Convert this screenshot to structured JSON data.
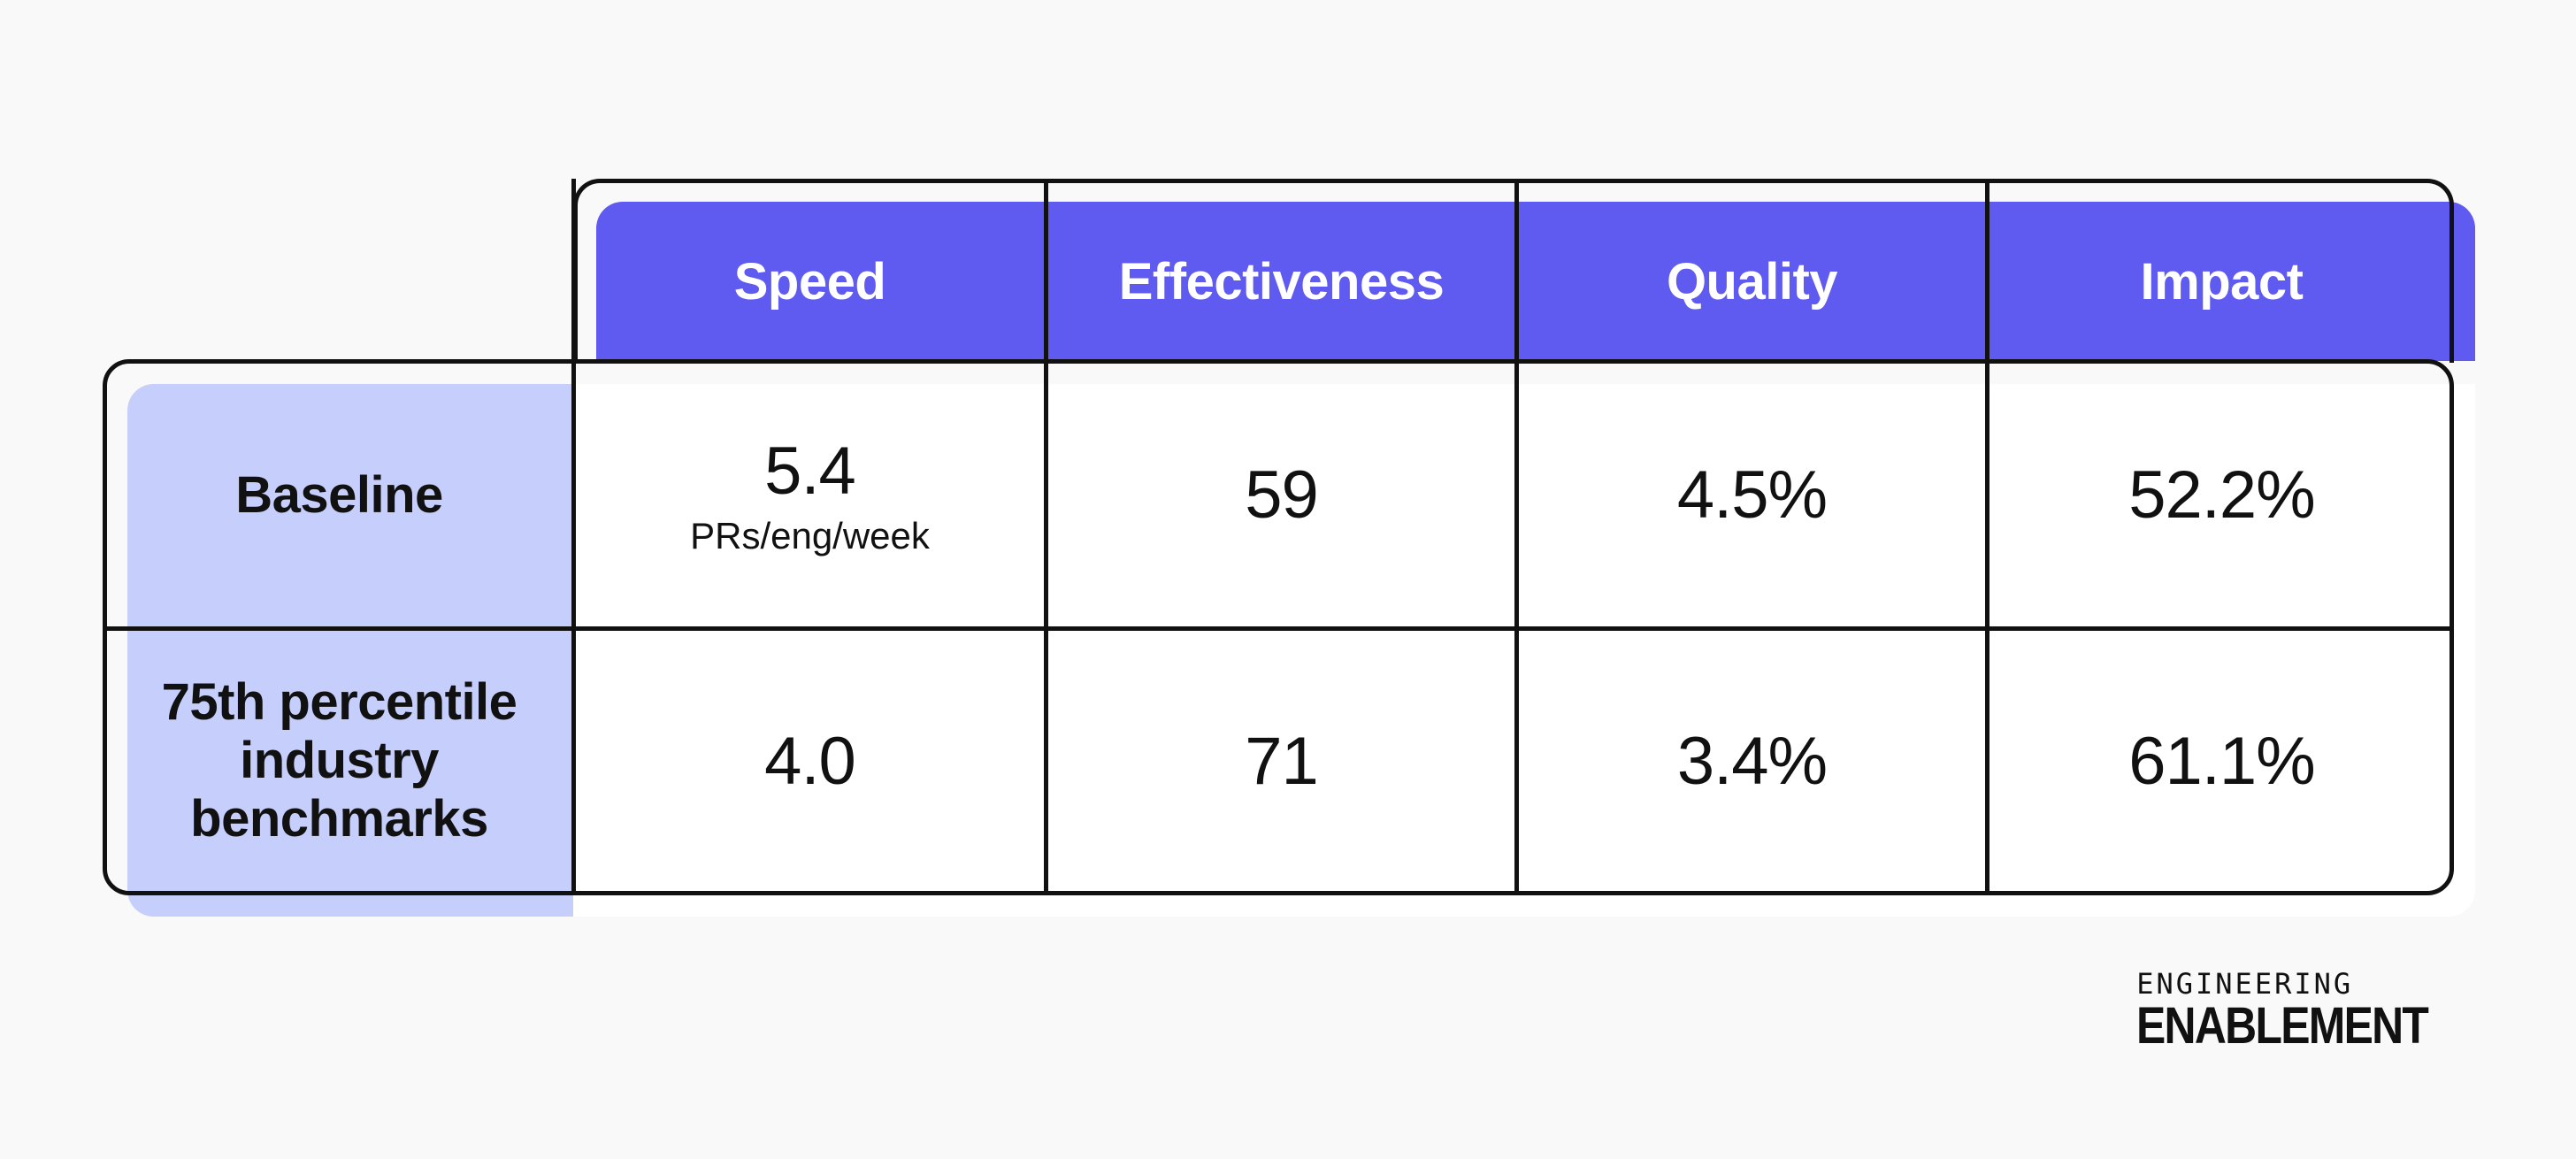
{
  "chart_data": {
    "type": "table",
    "columns": [
      "Speed",
      "Effectiveness",
      "Quality",
      "Impact"
    ],
    "rows": [
      {
        "label": "Baseline",
        "values": [
          "5.4",
          "59",
          "4.5%",
          "52.2%"
        ],
        "speed_unit": "PRs/eng/week"
      },
      {
        "label_lines": [
          "75th percentile",
          "industry",
          "benchmarks"
        ],
        "values": [
          "4.0",
          "71",
          "3.4%",
          "61.1%"
        ]
      }
    ],
    "colors": {
      "header_fill": "#5f5af0",
      "row_label_fill": "#c6cefc",
      "body_fill": "#ffffff",
      "border": "#111111"
    }
  },
  "logo": {
    "line1": "ENGINEERING",
    "line2": "ENABLEMENT"
  }
}
